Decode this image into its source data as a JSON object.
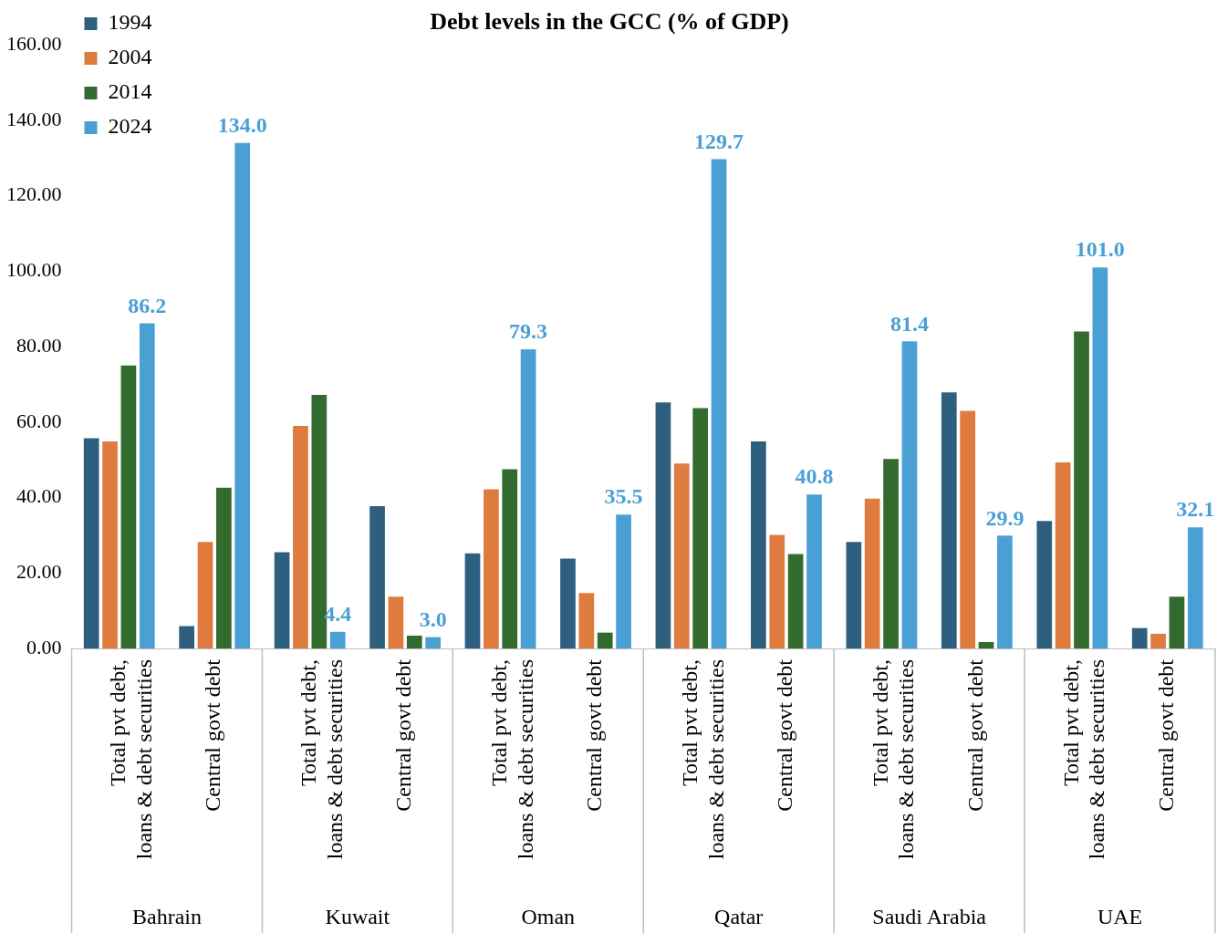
{
  "chart_data": {
    "type": "bar",
    "title": "Debt levels in the GCC (% of GDP)",
    "categories": [
      "Total pvt debt, loans & debt securities",
      "Central govt debt",
      "Total pvt debt, loans & debt securities",
      "Central govt debt",
      "Total pvt debt, loans & debt securities",
      "Central govt debt",
      "Total pvt debt, loans & debt securities",
      "Central govt debt",
      "Total pvt debt, loans & debt securities",
      "Central govt debt",
      "Total pvt debt, loans & debt securities",
      "Central govt debt"
    ],
    "annotations": [
      "Bahrain",
      "Kuwait",
      "Oman",
      "Qatar",
      "Saudi Arabia",
      "UAE"
    ],
    "series": [
      {
        "name": "1994",
        "color": "#2e5f7f",
        "values": [
          55.7,
          5.9,
          25.5,
          37.7,
          25.2,
          23.8,
          65.2,
          54.9,
          28.2,
          67.9,
          33.8,
          5.4
        ]
      },
      {
        "name": "2004",
        "color": "#e07b3f",
        "values": [
          54.9,
          28.2,
          59.0,
          13.7,
          42.2,
          14.7,
          49.0,
          30.1,
          39.7,
          63.0,
          49.3,
          3.9
        ]
      },
      {
        "name": "2014",
        "color": "#336b2e",
        "values": [
          75.0,
          42.6,
          67.2,
          3.4,
          47.5,
          4.2,
          63.7,
          25.0,
          50.2,
          1.7,
          84.0,
          13.7
        ]
      },
      {
        "name": "2024",
        "color": "#4aa0d5",
        "values": [
          86.2,
          134.0,
          4.4,
          3.0,
          79.3,
          35.5,
          129.7,
          40.8,
          81.4,
          29.9,
          101.0,
          32.1
        ],
        "value_labels": [
          "86.2",
          "134.0",
          "4.4",
          "3.0",
          "79.3",
          "35.5",
          "129.7",
          "40.8",
          "81.4",
          "29.9",
          "101.0",
          "32.1"
        ]
      }
    ],
    "ylim": [
      0,
      160
    ],
    "yticks": [
      {
        "value": 0,
        "label": "0.00"
      },
      {
        "value": 20,
        "label": "20.00"
      },
      {
        "value": 40,
        "label": "40.00"
      },
      {
        "value": 60,
        "label": "60.00"
      },
      {
        "value": 80,
        "label": "80.00"
      },
      {
        "value": 100,
        "label": "100.00"
      },
      {
        "value": 120,
        "label": "120.00"
      },
      {
        "value": 140,
        "label": "140.00"
      },
      {
        "value": 160,
        "label": "160.00"
      }
    ],
    "legend": "top left",
    "grid": false
  }
}
